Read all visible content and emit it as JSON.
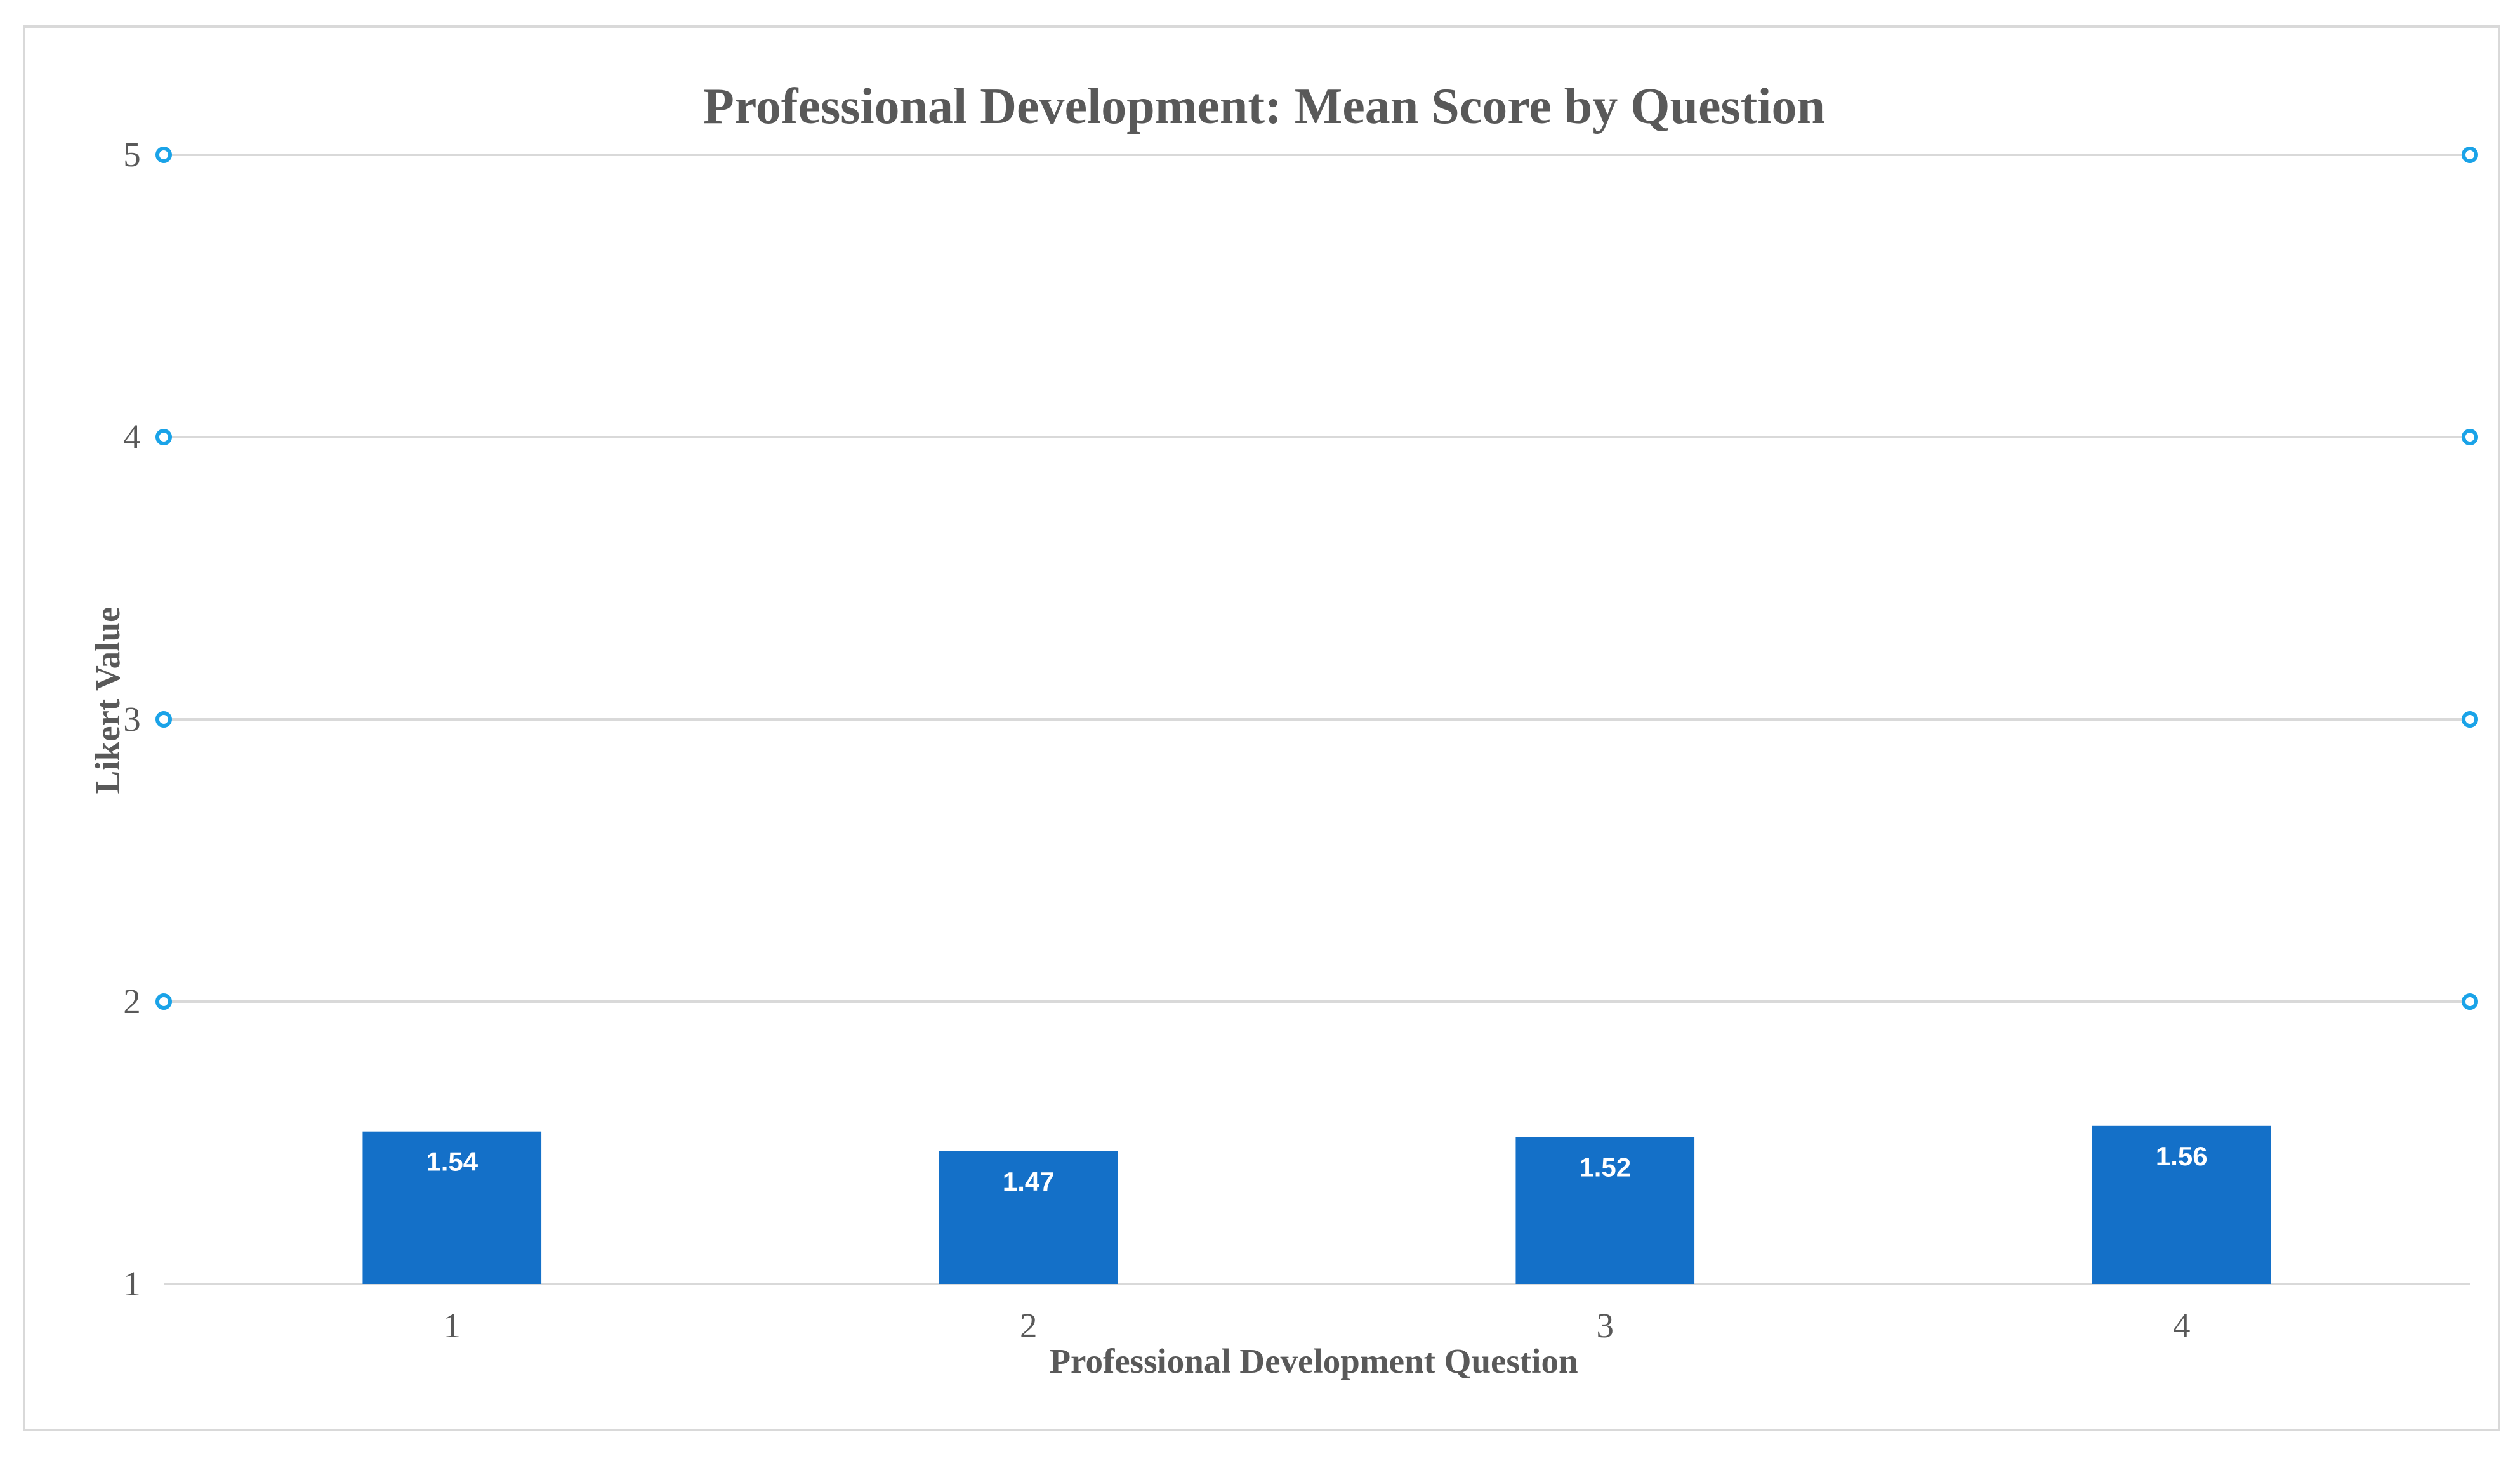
{
  "chart_data": {
    "type": "bar",
    "title": "Professional Development: Mean Score by Question",
    "xlabel": "Professional Development Question",
    "ylabel": "Likert Value",
    "categories": [
      "1",
      "2",
      "3",
      "4"
    ],
    "values": [
      1.54,
      1.47,
      1.52,
      1.56
    ],
    "data_labels": [
      "1.54",
      "1.47",
      "1.52",
      "1.56"
    ],
    "ylim": [
      1,
      5
    ],
    "yticks": [
      "1",
      "2",
      "3",
      "4",
      "5"
    ],
    "grid": true,
    "legend": "none",
    "colors": {
      "bar": "#1470c8",
      "grid": "#d9d9d9",
      "marker": "#1aa3e8",
      "text": "#595959",
      "label": "#ffffff"
    }
  }
}
